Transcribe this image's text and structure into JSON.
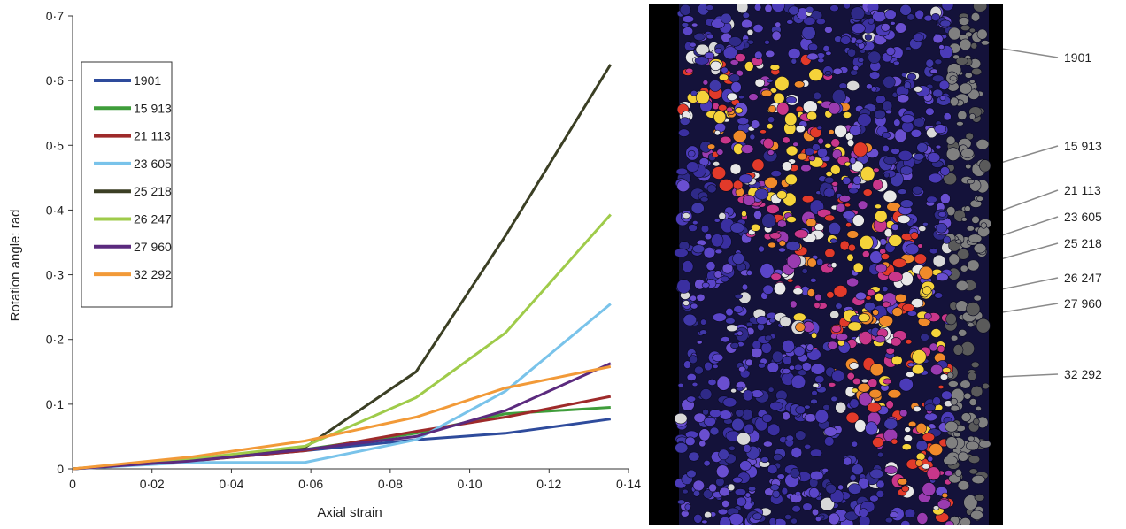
{
  "chart_data": {
    "type": "line",
    "xlabel": "Axial strain",
    "ylabel": "Rotation angle: rad",
    "xlim": [
      0,
      0.14
    ],
    "ylim": [
      0,
      0.7
    ],
    "x_ticks": [
      "0",
      "0·02",
      "0·04",
      "0·06",
      "0·08",
      "0·10",
      "0·12",
      "0·14"
    ],
    "y_ticks": [
      "0",
      "0·1",
      "0·2",
      "0·3",
      "0·4",
      "0·5",
      "0·6",
      "0·7"
    ],
    "grid": false,
    "legend_position": "top-left",
    "series": [
      {
        "name": "1901",
        "color": "#2e4b9c",
        "x": [
          0,
          0.0295,
          0.0585,
          0.0865,
          0.109,
          0.1355
        ],
        "y": [
          0,
          0.012,
          0.028,
          0.045,
          0.055,
          0.077
        ]
      },
      {
        "name": "15913",
        "color": "#3f9d3a",
        "x": [
          0,
          0.0295,
          0.0585,
          0.0865,
          0.109,
          0.1355
        ],
        "y": [
          0,
          0.012,
          0.03,
          0.055,
          0.085,
          0.095
        ]
      },
      {
        "name": "21113",
        "color": "#9e2a2a",
        "x": [
          0,
          0.0295,
          0.0585,
          0.0865,
          0.109,
          0.1355
        ],
        "y": [
          0,
          0.012,
          0.028,
          0.058,
          0.08,
          0.112
        ]
      },
      {
        "name": "23605",
        "color": "#79c3ea",
        "x": [
          0,
          0.0295,
          0.0585,
          0.0865,
          0.109,
          0.1355
        ],
        "y": [
          0,
          0.01,
          0.01,
          0.045,
          0.12,
          0.255
        ]
      },
      {
        "name": "25218",
        "color": "#3b3f24",
        "x": [
          0,
          0.0295,
          0.0585,
          0.0865,
          0.109,
          0.1355
        ],
        "y": [
          0,
          0.015,
          0.033,
          0.15,
          0.36,
          0.625
        ]
      },
      {
        "name": "26247",
        "color": "#9fcb4a",
        "x": [
          0,
          0.0295,
          0.0585,
          0.0865,
          0.109,
          0.1355
        ],
        "y": [
          0,
          0.015,
          0.035,
          0.11,
          0.21,
          0.393
        ]
      },
      {
        "name": "27960",
        "color": "#5b2a7e",
        "x": [
          0,
          0.0295,
          0.0585,
          0.0865,
          0.109,
          0.1355
        ],
        "y": [
          0,
          0.012,
          0.03,
          0.05,
          0.09,
          0.163
        ]
      },
      {
        "name": "32292",
        "color": "#f29a38",
        "x": [
          0,
          0.0295,
          0.0585,
          0.0865,
          0.109,
          0.1355
        ],
        "y": [
          0,
          0.018,
          0.043,
          0.08,
          0.125,
          0.158
        ]
      }
    ]
  },
  "image_callouts": [
    "1901",
    "15 913",
    "21 113",
    "23 605",
    "25 218",
    "26 247",
    "27 960",
    "32 292"
  ],
  "legend_labels": [
    "1901",
    "15 913",
    "21 113",
    "23 605",
    "25 218",
    "26 247",
    "27 960",
    "32 292"
  ]
}
